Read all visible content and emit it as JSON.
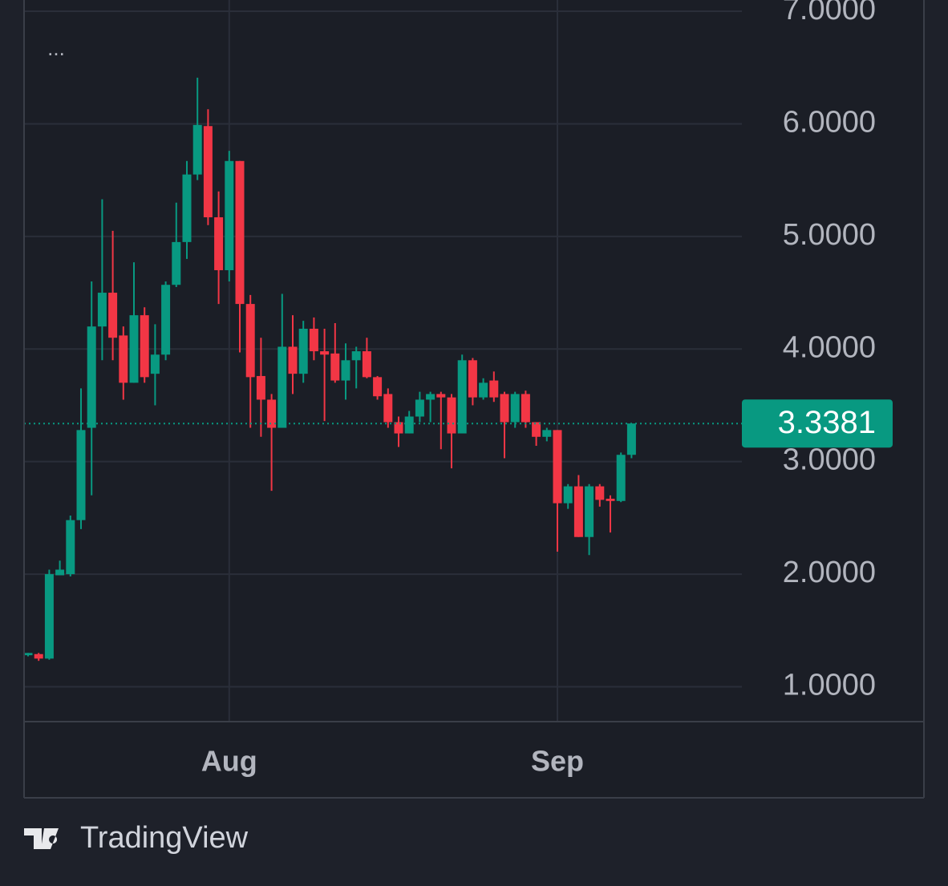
{
  "chart_data": {
    "type": "candlestick",
    "menu": "...",
    "brand": "TradingView",
    "categories": [
      null,
      null,
      null,
      null,
      null,
      null,
      null,
      null,
      null,
      null,
      null,
      null,
      null,
      null,
      null,
      null,
      null,
      null,
      null,
      "Aug",
      null,
      null,
      null,
      null,
      null,
      null,
      null,
      null,
      null,
      null,
      null,
      null,
      null,
      null,
      null,
      null,
      null,
      null,
      null,
      null,
      null,
      null,
      null,
      null,
      null,
      null,
      null,
      null,
      null,
      null,
      "Sep",
      null,
      null,
      null,
      null,
      null,
      null,
      null
    ],
    "open": [
      1.28,
      1.29,
      1.25,
      1.99,
      2.0,
      2.48,
      3.3,
      4.2,
      4.5,
      4.12,
      3.7,
      4.3,
      3.78,
      3.95,
      4.57,
      4.95,
      5.55,
      5.98,
      5.17,
      4.7,
      5.67,
      4.4,
      3.76,
      3.55,
      3.3,
      4.02,
      3.78,
      4.18,
      3.98,
      3.96,
      3.72,
      3.9,
      3.98,
      3.75,
      3.6,
      3.35,
      3.25,
      3.4,
      3.55,
      3.6,
      3.57,
      3.25,
      3.9,
      3.57,
      3.72,
      3.6,
      3.35,
      3.6,
      3.35,
      3.22,
      3.28,
      2.63,
      2.78,
      2.33,
      2.78,
      2.67,
      2.65,
      3.06
    ],
    "high": [
      1.3,
      1.3,
      2.04,
      2.12,
      2.52,
      3.65,
      4.6,
      5.33,
      5.05,
      4.2,
      4.77,
      4.37,
      4.22,
      4.6,
      5.3,
      5.67,
      6.41,
      6.13,
      5.4,
      5.76,
      5.67,
      4.48,
      4.1,
      3.6,
      4.49,
      4.3,
      4.25,
      4.28,
      4.18,
      4.23,
      4.05,
      4.02,
      4.1,
      3.76,
      3.65,
      3.4,
      3.45,
      3.62,
      3.62,
      3.62,
      3.6,
      3.95,
      3.92,
      3.74,
      3.8,
      3.62,
      3.62,
      3.63,
      3.35,
      3.3,
      3.28,
      2.8,
      2.88,
      2.8,
      2.8,
      2.7,
      3.08,
      3.3381
    ],
    "low": [
      1.27,
      1.23,
      1.24,
      1.99,
      1.98,
      2.4,
      2.7,
      3.9,
      3.9,
      3.55,
      3.7,
      3.7,
      3.5,
      3.9,
      4.55,
      4.8,
      5.5,
      5.1,
      4.4,
      4.6,
      3.97,
      3.3,
      3.22,
      2.74,
      3.3,
      3.6,
      3.7,
      3.9,
      3.36,
      3.7,
      3.55,
      3.65,
      3.74,
      3.55,
      3.3,
      3.13,
      3.25,
      3.35,
      3.35,
      3.11,
      2.94,
      3.25,
      3.5,
      3.55,
      3.53,
      3.03,
      3.3,
      3.3,
      3.14,
      3.18,
      2.2,
      2.58,
      2.33,
      2.17,
      2.6,
      2.37,
      2.64,
      3.03
    ],
    "close": [
      1.3,
      1.25,
      2.0,
      2.04,
      2.48,
      3.28,
      4.2,
      4.5,
      4.1,
      3.7,
      4.3,
      3.75,
      3.95,
      4.57,
      4.95,
      5.55,
      5.99,
      5.17,
      4.7,
      5.67,
      4.4,
      3.75,
      3.55,
      3.3,
      4.02,
      3.78,
      4.18,
      3.98,
      3.95,
      3.72,
      3.9,
      3.98,
      3.75,
      3.58,
      3.35,
      3.25,
      3.4,
      3.55,
      3.6,
      3.57,
      3.25,
      3.9,
      3.57,
      3.7,
      3.57,
      3.35,
      3.6,
      3.35,
      3.22,
      3.28,
      2.63,
      2.78,
      2.33,
      2.78,
      2.66,
      2.65,
      3.06,
      3.3381
    ],
    "up_color": "#089981",
    "down_color": "#f23645",
    "ylim": [
      0.69,
      7.1
    ],
    "yticks": [
      {
        "value": 1,
        "label": "1.0000"
      },
      {
        "value": 2,
        "label": "2.0000"
      },
      {
        "value": 3,
        "label": "3.0000"
      },
      {
        "value": 4,
        "label": "4.0000"
      },
      {
        "value": 5,
        "label": "5.0000"
      },
      {
        "value": 6,
        "label": "6.0000"
      },
      {
        "value": 7,
        "label": "7.0000"
      }
    ],
    "grid": true
  }
}
